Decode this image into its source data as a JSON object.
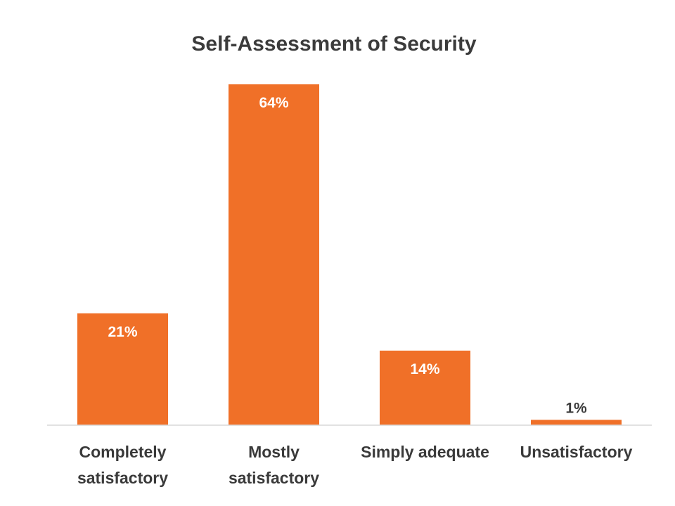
{
  "chart_data": {
    "type": "bar",
    "title": "Self-Assessment of Security",
    "categories": [
      [
        "Completely",
        "satisfactory"
      ],
      [
        "Mostly",
        "satisfactory"
      ],
      [
        "Simply adequate"
      ],
      [
        "Unsatisfactory"
      ]
    ],
    "values": [
      21,
      64,
      14,
      1
    ],
    "data_labels": [
      "21%",
      "64%",
      "14%",
      "1%"
    ],
    "value_unit": "%",
    "xlabel": "",
    "ylabel": "",
    "ylim": [
      0,
      64
    ],
    "grid": false,
    "legend": "none"
  },
  "colors": {
    "bar": "#f07028",
    "label_inside": "#ffffff",
    "label_outside": "#3a3a3a",
    "axis": "#d9d9d9"
  }
}
